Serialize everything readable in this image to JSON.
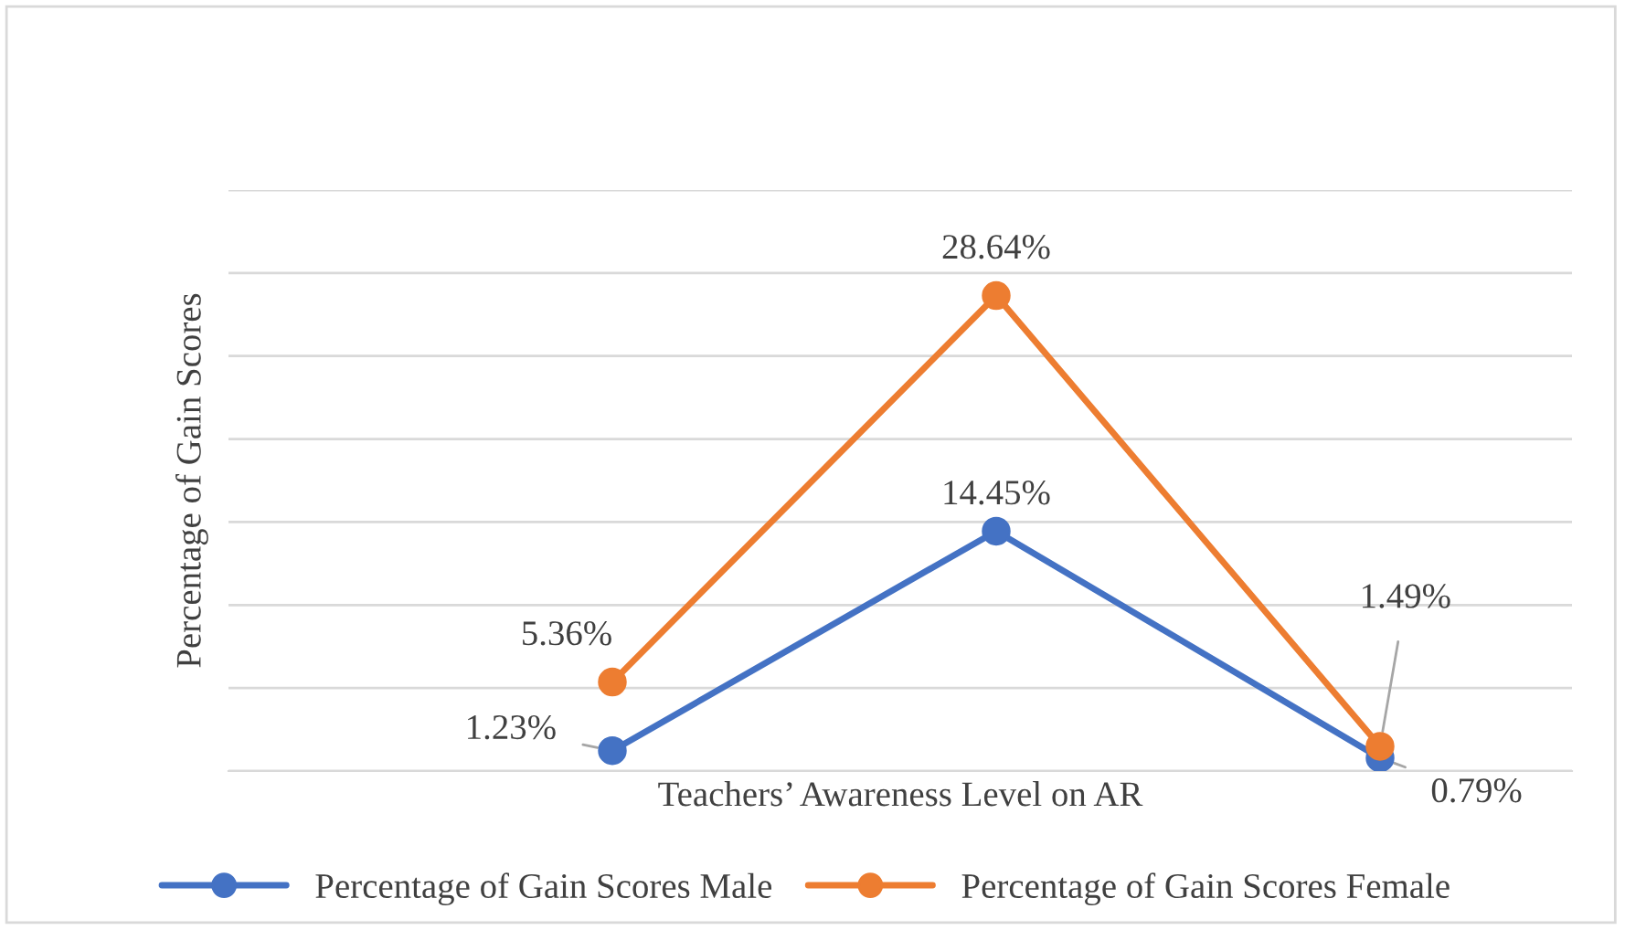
{
  "chart_data": {
    "type": "line",
    "xlabel": "Teachers’ Awareness Level on AR",
    "ylabel": "Percentage of Gain Scores",
    "categories": [
      null,
      null,
      null
    ],
    "series": [
      {
        "name": "Percentage of Gain Scores Male",
        "color": "#4472c4",
        "values": [
          1.23,
          14.45,
          0.79
        ],
        "value_labels": [
          "1.23%",
          "14.45%",
          "0.79%"
        ]
      },
      {
        "name": "Percentage of Gain Scores Female",
        "color": "#ed7d31",
        "values": [
          5.36,
          28.64,
          1.49
        ],
        "value_labels": [
          "5.36%",
          "28.64%",
          "1.49%"
        ]
      }
    ],
    "ylim": [
      0,
      35
    ],
    "yticks": [
      {
        "value": 0,
        "label": null
      },
      {
        "value": 5,
        "label": null
      },
      {
        "value": 10,
        "label": null
      },
      {
        "value": 15,
        "label": null
      },
      {
        "value": 20,
        "label": null
      },
      {
        "value": 25,
        "label": null
      },
      {
        "value": 30,
        "label": null
      },
      {
        "value": 35,
        "label": null
      }
    ],
    "tick_labels": false,
    "grid": "y",
    "legend": "bottom",
    "marker": "circle",
    "line_style": "solid"
  }
}
